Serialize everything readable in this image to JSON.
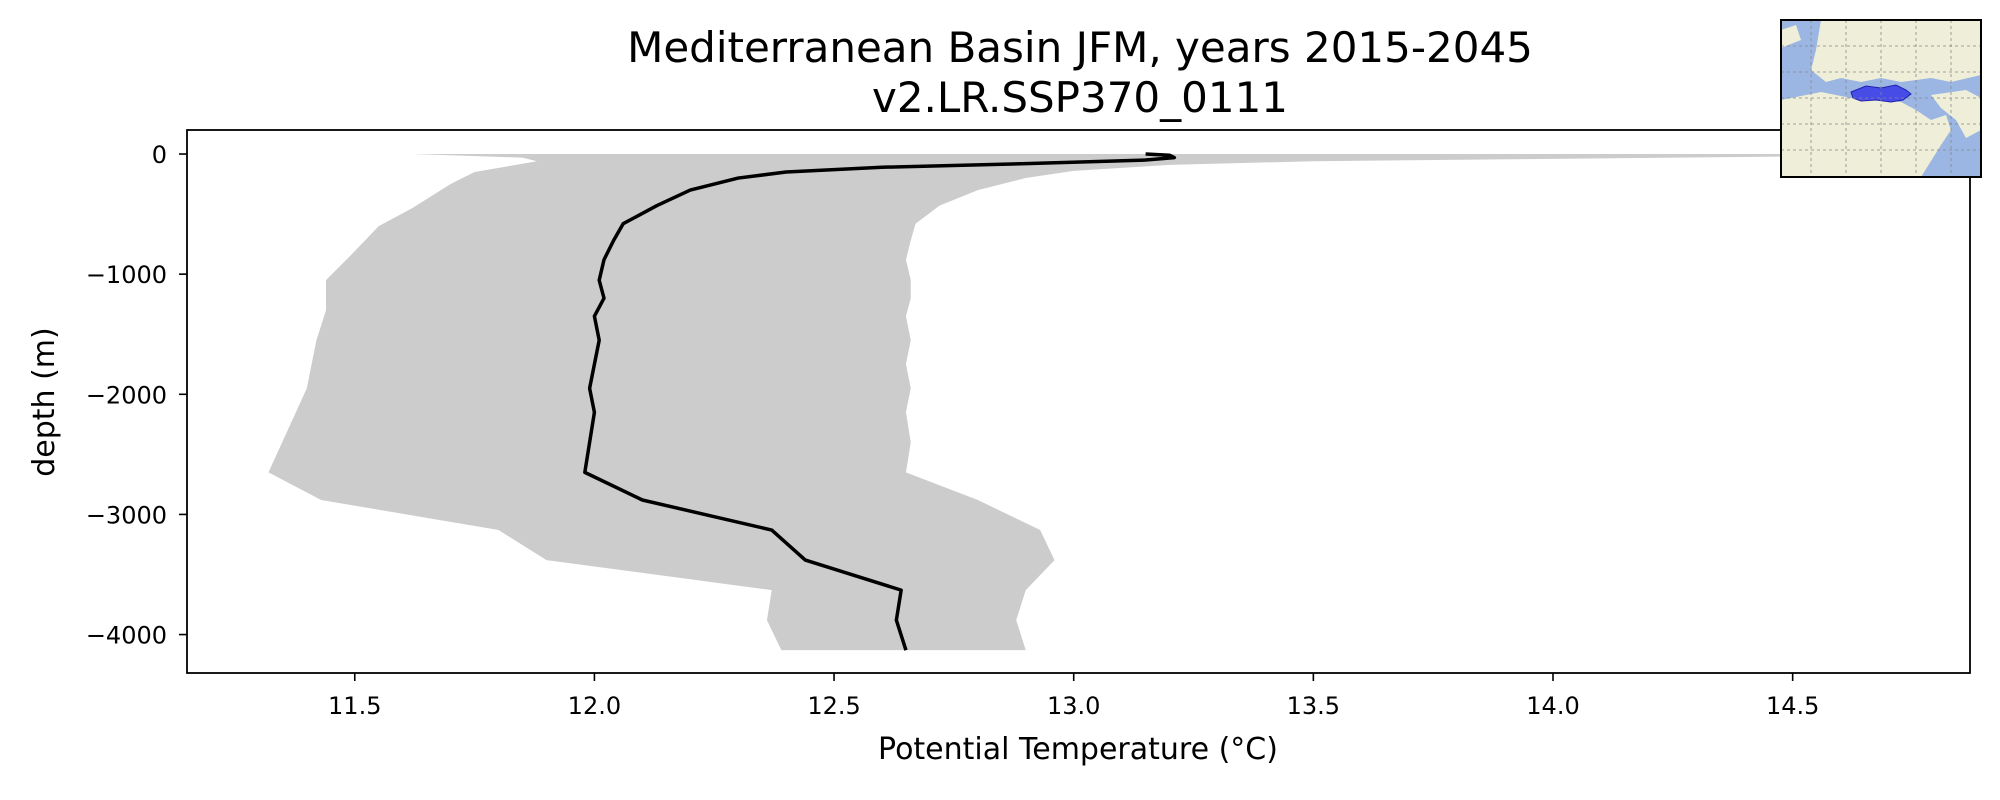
{
  "chart_data": {
    "type": "line",
    "title_line1": "Mediterranean Basin JFM, years 2015-2045",
    "title_line2": "v2.LR.SSP370_0111",
    "xlabel": "Potential Temperature (°C)",
    "ylabel": "depth (m)",
    "xlim": [
      11.15,
      14.87
    ],
    "ylim": [
      -4320,
      200
    ],
    "xticks": [
      11.5,
      12.0,
      12.5,
      13.0,
      13.5,
      14.0,
      14.5
    ],
    "xtick_labels": [
      "11.5",
      "12.0",
      "12.5",
      "13.0",
      "13.5",
      "14.0",
      "14.5"
    ],
    "yticks": [
      0,
      -1000,
      -2000,
      -3000,
      -4000
    ],
    "ytick_labels": [
      "0",
      "−1000",
      "−2000",
      "−3000",
      "−4000"
    ],
    "grid": false,
    "colors": {
      "mean_line": "#000000",
      "range_fill": "#cccccc"
    },
    "series": [
      {
        "kind": "mean",
        "points": [
          [
            13.15,
            0
          ],
          [
            13.2,
            -10
          ],
          [
            13.21,
            -30
          ],
          [
            13.15,
            -50
          ],
          [
            12.9,
            -80
          ],
          [
            12.6,
            -110
          ],
          [
            12.4,
            -150
          ],
          [
            12.3,
            -200
          ],
          [
            12.2,
            -300
          ],
          [
            12.13,
            -430
          ],
          [
            12.06,
            -580
          ],
          [
            12.04,
            -720
          ],
          [
            12.02,
            -880
          ],
          [
            12.01,
            -1050
          ],
          [
            12.02,
            -1200
          ],
          [
            12.0,
            -1350
          ],
          [
            12.01,
            -1550
          ],
          [
            12.0,
            -1750
          ],
          [
            11.99,
            -1950
          ],
          [
            12.0,
            -2150
          ],
          [
            11.99,
            -2400
          ],
          [
            11.98,
            -2650
          ],
          [
            12.1,
            -2880
          ],
          [
            12.37,
            -3130
          ],
          [
            12.44,
            -3380
          ],
          [
            12.64,
            -3630
          ],
          [
            12.63,
            -3880
          ],
          [
            12.65,
            -4130
          ]
        ]
      },
      {
        "kind": "range",
        "upper": [
          [
            14.8,
            0
          ],
          [
            14.5,
            -20
          ],
          [
            14.0,
            -40
          ],
          [
            13.5,
            -60
          ],
          [
            13.2,
            -90
          ],
          [
            13.0,
            -140
          ],
          [
            12.9,
            -200
          ],
          [
            12.8,
            -300
          ],
          [
            12.72,
            -430
          ],
          [
            12.67,
            -580
          ],
          [
            12.66,
            -720
          ],
          [
            12.65,
            -880
          ],
          [
            12.66,
            -1050
          ],
          [
            12.66,
            -1200
          ],
          [
            12.65,
            -1350
          ],
          [
            12.66,
            -1550
          ],
          [
            12.65,
            -1750
          ],
          [
            12.66,
            -1950
          ],
          [
            12.65,
            -2150
          ],
          [
            12.66,
            -2400
          ],
          [
            12.65,
            -2650
          ],
          [
            12.8,
            -2880
          ],
          [
            12.93,
            -3130
          ],
          [
            12.96,
            -3380
          ],
          [
            12.9,
            -3630
          ],
          [
            12.88,
            -3880
          ],
          [
            12.9,
            -4130
          ]
        ],
        "lower": [
          [
            11.62,
            0
          ],
          [
            11.85,
            -30
          ],
          [
            11.88,
            -60
          ],
          [
            11.75,
            -150
          ],
          [
            11.7,
            -250
          ],
          [
            11.62,
            -450
          ],
          [
            11.55,
            -600
          ],
          [
            11.49,
            -850
          ],
          [
            11.44,
            -1050
          ],
          [
            11.44,
            -1300
          ],
          [
            11.42,
            -1550
          ],
          [
            11.41,
            -1750
          ],
          [
            11.4,
            -1950
          ],
          [
            11.32,
            -2650
          ],
          [
            11.43,
            -2880
          ],
          [
            11.8,
            -3130
          ],
          [
            11.9,
            -3380
          ],
          [
            12.37,
            -3630
          ],
          [
            12.36,
            -3880
          ],
          [
            12.39,
            -4130
          ]
        ]
      }
    ]
  },
  "inset_map": {
    "region_highlight_color": "#3a3ae8",
    "ocean_color": "#9bb6e2",
    "land_color": "#efeed8"
  }
}
